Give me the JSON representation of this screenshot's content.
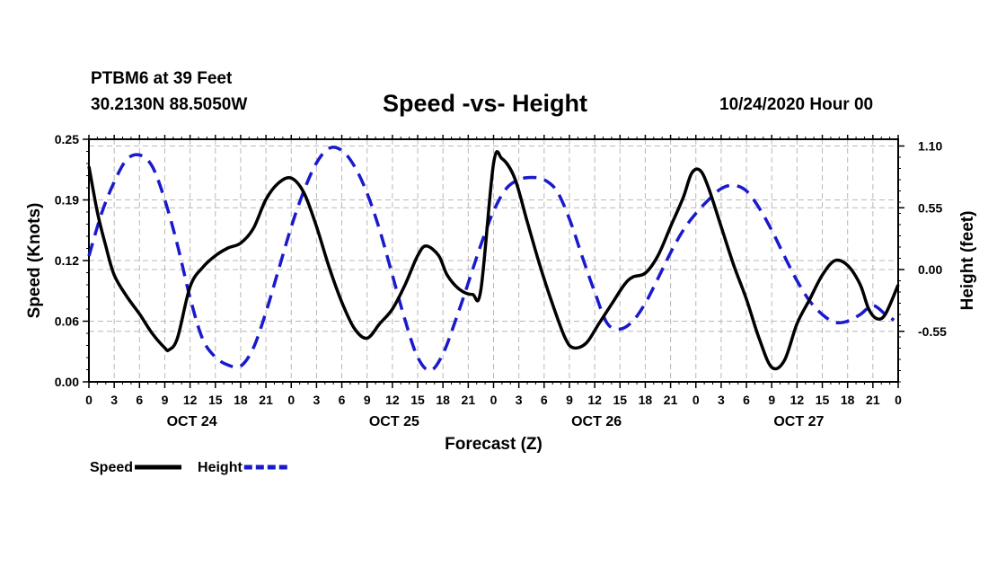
{
  "header": {
    "station": "PTBM6 at 39 Feet",
    "coords": "30.2130N 88.5050W",
    "title": "Speed -vs- Height",
    "datetime": "10/24/2020 Hour 00"
  },
  "chart_data": {
    "type": "line",
    "title": "Speed -vs- Height",
    "xlabel": "Forecast (Z)",
    "ylabel_left": "Speed (Knots)",
    "ylabel_right": "Height (feet)",
    "xlim": [
      0,
      96
    ],
    "ylim_left": [
      0,
      0.25
    ],
    "ylim_right": [
      -1.0,
      1.16
    ],
    "y_ticks_left": [
      "0.00",
      "0.06",
      "0.12",
      "0.19",
      "0.25"
    ],
    "y_ticks_left_values": [
      0,
      0.0625,
      0.125,
      0.1875,
      0.25
    ],
    "y_ticks_right": [
      "-0.55",
      "0.00",
      "0.55",
      "1.10"
    ],
    "y_ticks_right_values": [
      -0.55,
      0,
      0.55,
      1.1
    ],
    "x_tick_labels": [
      "0",
      "3",
      "6",
      "9",
      "12",
      "15",
      "18",
      "21",
      "0",
      "3",
      "6",
      "9",
      "12",
      "15",
      "18",
      "21",
      "0",
      "3",
      "6",
      "9",
      "12",
      "15",
      "18",
      "21",
      "0",
      "3",
      "6",
      "9",
      "12",
      "15",
      "18",
      "21",
      "0"
    ],
    "day_labels": [
      {
        "label": "OCT 24",
        "hour": 12
      },
      {
        "label": "OCT 25",
        "hour": 36
      },
      {
        "label": "OCT 26",
        "hour": 60
      },
      {
        "label": "OCT 27",
        "hour": 84
      }
    ],
    "grid": true,
    "legend": [
      {
        "name": "Speed",
        "color": "#000000",
        "dash": "solid"
      },
      {
        "name": "Height",
        "color": "#1a1acc",
        "dash": "dashed"
      }
    ],
    "series": [
      {
        "name": "Speed",
        "axis": "left",
        "color": "#000000",
        "x": [
          0,
          1,
          2,
          3,
          4.5,
          6,
          7.5,
          9,
          9.5,
          10.5,
          12,
          13.5,
          15,
          16.5,
          18,
          19.5,
          21,
          22.5,
          24,
          25.5,
          27,
          28.5,
          30,
          31.5,
          33,
          34.5,
          36,
          37.5,
          39,
          40,
          41.5,
          42.5,
          44,
          45.5,
          46.5,
          48,
          49,
          50.5,
          52,
          53.5,
          55,
          56.5,
          57.5,
          59,
          60.5,
          62,
          63.5,
          64.5,
          66,
          67.5,
          69,
          70.5,
          71.5,
          72.5,
          73.5,
          75,
          76.5,
          78,
          79.5,
          81,
          82.5,
          84,
          85.5,
          87,
          88.5,
          90,
          91.5,
          92.5,
          93.5,
          94.5,
          96
        ],
        "values": [
          0.222,
          0.175,
          0.14,
          0.11,
          0.088,
          0.07,
          0.05,
          0.035,
          0.033,
          0.045,
          0.098,
          0.118,
          0.13,
          0.138,
          0.143,
          0.158,
          0.188,
          0.205,
          0.21,
          0.195,
          0.16,
          0.118,
          0.082,
          0.055,
          0.045,
          0.06,
          0.075,
          0.1,
          0.13,
          0.14,
          0.13,
          0.11,
          0.095,
          0.09,
          0.095,
          0.225,
          0.23,
          0.21,
          0.165,
          0.12,
          0.08,
          0.045,
          0.035,
          0.04,
          0.06,
          0.08,
          0.1,
          0.108,
          0.112,
          0.13,
          0.16,
          0.19,
          0.215,
          0.218,
          0.2,
          0.16,
          0.12,
          0.085,
          0.045,
          0.015,
          0.022,
          0.06,
          0.085,
          0.11,
          0.125,
          0.12,
          0.1,
          0.075,
          0.065,
          0.07,
          0.1
        ]
      },
      {
        "name": "Height",
        "axis": "right",
        "color": "#1a1acc",
        "x": [
          0,
          1.5,
          3,
          4.5,
          6,
          7.5,
          9,
          10.5,
          12,
          13.5,
          15,
          16.5,
          18,
          19.5,
          21,
          22.5,
          24,
          25.5,
          27,
          28.5,
          30,
          31.5,
          33,
          34.5,
          36,
          37.5,
          39,
          40.5,
          42,
          43.5,
          45,
          46.5,
          48,
          49.5,
          51,
          52.5,
          54,
          55.5,
          57,
          58.5,
          60,
          61.5,
          63,
          64.5,
          66,
          67.5,
          69,
          70.5,
          72,
          73.5,
          75,
          76.5,
          78,
          79.5,
          81,
          82.5,
          84,
          85.5,
          87,
          88.5,
          90,
          91.5,
          93,
          94.5,
          95.5
        ],
        "values": [
          0.12,
          0.5,
          0.78,
          0.98,
          1.02,
          0.92,
          0.62,
          0.22,
          -0.25,
          -0.62,
          -0.78,
          -0.85,
          -0.86,
          -0.7,
          -0.38,
          0.0,
          0.38,
          0.7,
          0.95,
          1.08,
          1.06,
          0.92,
          0.68,
          0.35,
          -0.05,
          -0.45,
          -0.78,
          -0.9,
          -0.75,
          -0.45,
          -0.12,
          0.22,
          0.52,
          0.72,
          0.8,
          0.82,
          0.8,
          0.7,
          0.45,
          0.12,
          -0.2,
          -0.48,
          -0.53,
          -0.46,
          -0.3,
          -0.08,
          0.15,
          0.35,
          0.5,
          0.62,
          0.72,
          0.75,
          0.7,
          0.55,
          0.35,
          0.12,
          -0.1,
          -0.28,
          -0.4,
          -0.47,
          -0.46,
          -0.4,
          -0.32,
          -0.4,
          -0.45
        ]
      }
    ]
  }
}
